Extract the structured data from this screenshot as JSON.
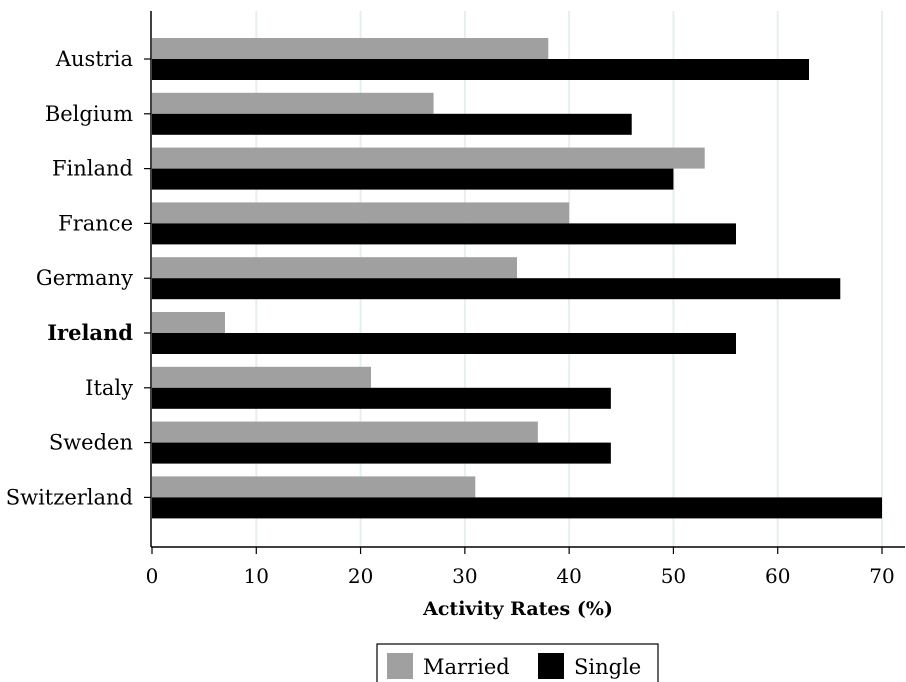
{
  "chart_data": {
    "type": "bar",
    "orientation": "horizontal",
    "categories": [
      "Austria",
      "Belgium",
      "Finland",
      "France",
      "Germany",
      "Ireland",
      "Italy",
      "Sweden",
      "Switzerland"
    ],
    "highlighted_category": "Ireland",
    "series": [
      {
        "name": "Married",
        "color": "#a0a0a0",
        "values": [
          38,
          27,
          53,
          40,
          35,
          7,
          21,
          37,
          31
        ]
      },
      {
        "name": "Single",
        "color": "#000000",
        "values": [
          63,
          46,
          50,
          56,
          66,
          56,
          44,
          44,
          70
        ]
      }
    ],
    "xlabel": "Activity Rates (%)",
    "ylabel": "",
    "xlim": [
      0,
      70
    ],
    "xticks": [
      "0",
      "10",
      "20",
      "30",
      "40",
      "50",
      "60",
      "70"
    ],
    "grid": "vertical",
    "legend_position": "bottom"
  }
}
